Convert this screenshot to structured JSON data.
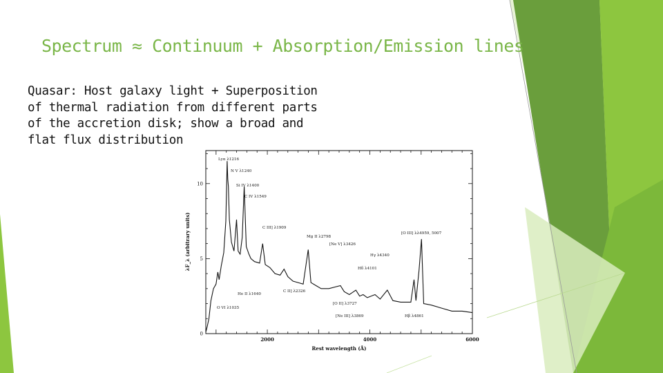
{
  "slide": {
    "title": "Spectrum ≈ Continuum + Absorption/Emission lines",
    "body_lines": [
      "Quasar: Host galaxy light + Superposition",
      "of thermal radiation from different parts",
      "of the accretion disk; show a broad and",
      "flat flux distribution"
    ],
    "accent_colors": [
      "#7ab648",
      "#8dc63f",
      "#5b8c2a",
      "#cfe6a8"
    ]
  },
  "chart_data": {
    "type": "line",
    "xlabel": "Rest wavelength (Å)",
    "ylabel": "λF_λ (arbitrary units)",
    "xlim": [
      800,
      6000
    ],
    "ylim": [
      0,
      12.2
    ],
    "x_ticks": [
      2000,
      4000,
      6000
    ],
    "y_ticks": [
      0,
      5,
      10
    ],
    "series": [
      {
        "x": [
          800,
          830,
          860,
          900,
          950,
          1000,
          1035,
          1060,
          1100,
          1150,
          1190,
          1216,
          1228,
          1240,
          1260,
          1300,
          1350,
          1400,
          1430,
          1470,
          1510,
          1549,
          1590,
          1640,
          1680,
          1750,
          1850,
          1909,
          1960,
          2050,
          2150,
          2250,
          2326,
          2400,
          2500,
          2600,
          2700,
          2798,
          2850,
          2950,
          3050,
          3200,
          3426,
          3500,
          3600,
          3727,
          3800,
          3869,
          3950,
          4101,
          4200,
          4340,
          4450,
          4600,
          4800,
          4861,
          4900,
          4959,
          5007,
          5050,
          5200,
          5400,
          5600,
          5800,
          6000
        ],
        "y": [
          0.1,
          0.5,
          1.0,
          2.2,
          3.0,
          3.3,
          4.1,
          3.6,
          4.5,
          5.4,
          7.5,
          11.5,
          10.3,
          9.8,
          7.6,
          6.1,
          5.5,
          7.6,
          5.5,
          5.3,
          6.4,
          9.8,
          5.8,
          5.3,
          5.0,
          4.8,
          4.7,
          6.0,
          4.6,
          4.4,
          4.0,
          3.9,
          4.3,
          3.8,
          3.5,
          3.4,
          3.3,
          5.6,
          3.4,
          3.2,
          3.0,
          3.0,
          3.2,
          2.8,
          2.6,
          2.9,
          2.5,
          2.6,
          2.4,
          2.6,
          2.3,
          2.9,
          2.2,
          2.1,
          2.1,
          3.6,
          2.2,
          4.2,
          6.3,
          2.0,
          1.9,
          1.7,
          1.5,
          1.5,
          1.4
        ]
      }
    ],
    "annotations": [
      {
        "label": "Lyα λ1216",
        "x": 1216
      },
      {
        "label": "N V λ1240",
        "x": 1240
      },
      {
        "label": "Si IV λ1400",
        "x": 1400
      },
      {
        "label": "C IV λ1549",
        "x": 1549
      },
      {
        "label": "C III] λ1909",
        "x": 1909
      },
      {
        "label": "Mg II λ2798",
        "x": 2798
      },
      {
        "label": "[Ne V] λ3426",
        "x": 3426
      },
      {
        "label": "Hγ λ4340",
        "x": 4340
      },
      {
        "label": "Hδ λ4101",
        "x": 4101
      },
      {
        "label": "[O III] λλ4959, 5007",
        "x": 5007
      },
      {
        "label": "He II λ1640",
        "x": 1640
      },
      {
        "label": "C II] λ2326",
        "x": 2326
      },
      {
        "label": "O VI λ1035",
        "x": 1035
      },
      {
        "label": "[O II] λ3727",
        "x": 3727
      },
      {
        "label": "[Ne III] λ3869",
        "x": 3869
      },
      {
        "label": "Hβ λ4861",
        "x": 4861
      }
    ]
  }
}
